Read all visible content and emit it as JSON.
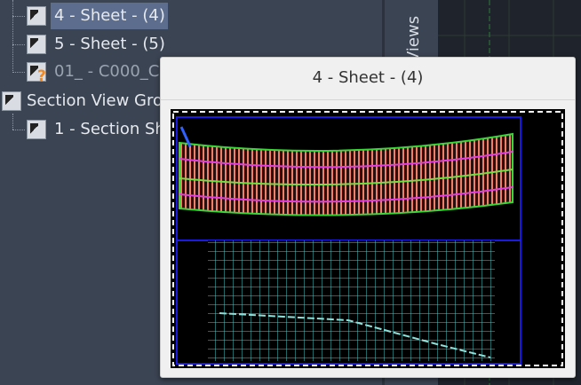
{
  "tree": {
    "items": [
      {
        "label": "4 - Sheet - (4)"
      },
      {
        "label": "5 - Sheet - (5)"
      },
      {
        "label": "01_ - C000_C"
      },
      {
        "label": "Section View Gro"
      },
      {
        "label": "1 - Section Sh"
      }
    ]
  },
  "side_tab": {
    "label": "Views"
  },
  "tooltip": {
    "title": "4 - Sheet - (4)"
  }
}
